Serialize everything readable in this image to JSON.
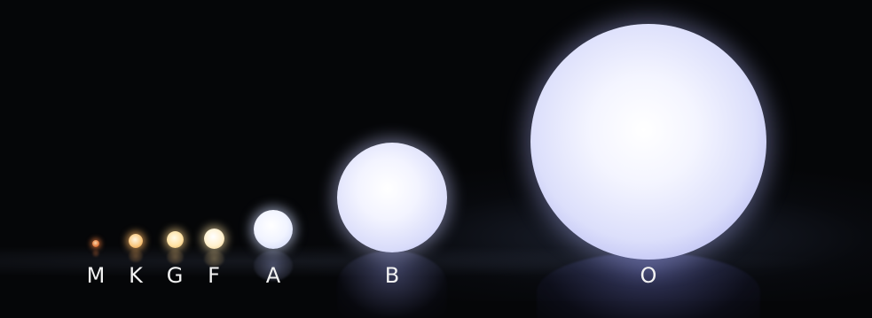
{
  "spectral_classes": [
    {
      "label": "M",
      "color": "#e0773c"
    },
    {
      "label": "K",
      "color": "#f8c47a"
    },
    {
      "label": "G",
      "color": "#ffe3a6"
    },
    {
      "label": "F",
      "color": "#fff1cf"
    },
    {
      "label": "A",
      "color": "#f1f4ff"
    },
    {
      "label": "B",
      "color": "#d9dcfa"
    },
    {
      "label": "O",
      "color": "#aeb1ef"
    }
  ],
  "background_color": "#050608"
}
